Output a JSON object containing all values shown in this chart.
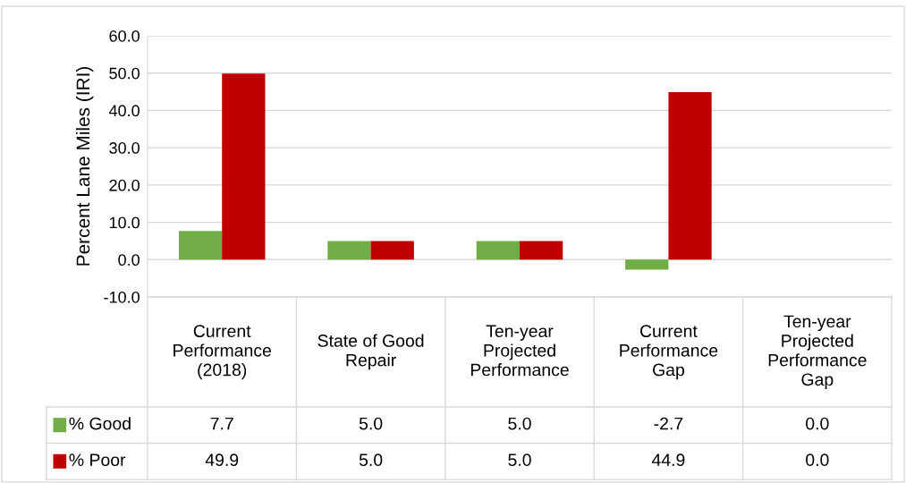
{
  "chart_data": {
    "type": "bar",
    "ylabel": "Percent Lane Miles (IRI)",
    "categories": [
      "Current Performance (2018)",
      "State of Good Repair",
      "Ten-year Projected Performance",
      "Current Performance Gap",
      "Ten-year Projected Performance Gap"
    ],
    "series": [
      {
        "name": "% Good",
        "color": "#70ad47",
        "values": [
          7.7,
          5.0,
          5.0,
          -2.7,
          0.0
        ],
        "value_labels": [
          "7.7",
          "5.0",
          "5.0",
          "-2.7",
          "0.0"
        ]
      },
      {
        "name": "% Poor",
        "color": "#c00000",
        "values": [
          49.9,
          5.0,
          5.0,
          44.9,
          0.0
        ],
        "value_labels": [
          "49.9",
          "5.0",
          "5.0",
          "44.9",
          "0.0"
        ]
      }
    ],
    "ylim": [
      -10,
      60
    ],
    "yticks": [
      {
        "value": -10,
        "label": "-10.0"
      },
      {
        "value": 0,
        "label": "0.0"
      },
      {
        "value": 10,
        "label": "10.0"
      },
      {
        "value": 20,
        "label": "20.0"
      },
      {
        "value": 30,
        "label": "30.0"
      },
      {
        "value": 40,
        "label": "40.0"
      },
      {
        "value": 50,
        "label": "50.0"
      },
      {
        "value": 60,
        "label": "60.0"
      }
    ],
    "grid": "y",
    "legend": "bottom left"
  }
}
